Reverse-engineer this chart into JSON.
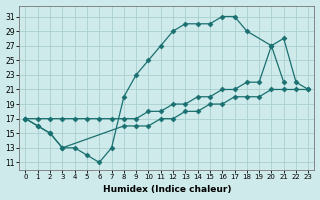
{
  "xlabel": "Humidex (Indice chaleur)",
  "bg_color": "#ceeaea",
  "grid_color": "#aacece",
  "line_color": "#1a7070",
  "ytick_min": 11,
  "ytick_max": 31,
  "ytick_step": 2,
  "figwidth": 3.2,
  "figheight": 2.0,
  "dpi": 100,
  "series1_x": [
    0,
    1,
    2,
    3,
    4,
    5,
    6,
    7,
    8,
    9,
    10,
    11,
    12,
    13,
    14,
    15,
    16,
    17,
    18,
    20,
    21
  ],
  "series1_y": [
    17,
    16,
    15,
    13,
    13,
    12,
    11,
    13,
    20,
    23,
    25,
    27,
    29,
    30,
    30,
    30,
    31,
    31,
    29,
    27,
    22
  ],
  "series2_x": [
    0,
    1,
    2,
    3,
    4,
    5,
    6,
    7,
    8,
    9,
    10,
    11,
    12,
    13,
    14,
    15,
    16,
    17,
    18,
    19,
    20,
    21,
    22,
    23
  ],
  "series2_y": [
    17,
    17,
    17,
    17,
    17,
    17,
    17,
    17,
    17,
    17,
    18,
    18,
    19,
    19,
    20,
    20,
    21,
    21,
    22,
    22,
    27,
    28,
    22,
    21
  ],
  "series3_x": [
    0,
    1,
    2,
    3,
    8,
    9,
    10,
    11,
    12,
    13,
    14,
    15,
    16,
    17,
    18,
    19,
    20,
    21,
    22,
    23
  ],
  "series3_y": [
    17,
    16,
    15,
    13,
    16,
    16,
    16,
    17,
    17,
    18,
    18,
    19,
    19,
    20,
    20,
    20,
    21,
    21,
    21,
    21
  ]
}
